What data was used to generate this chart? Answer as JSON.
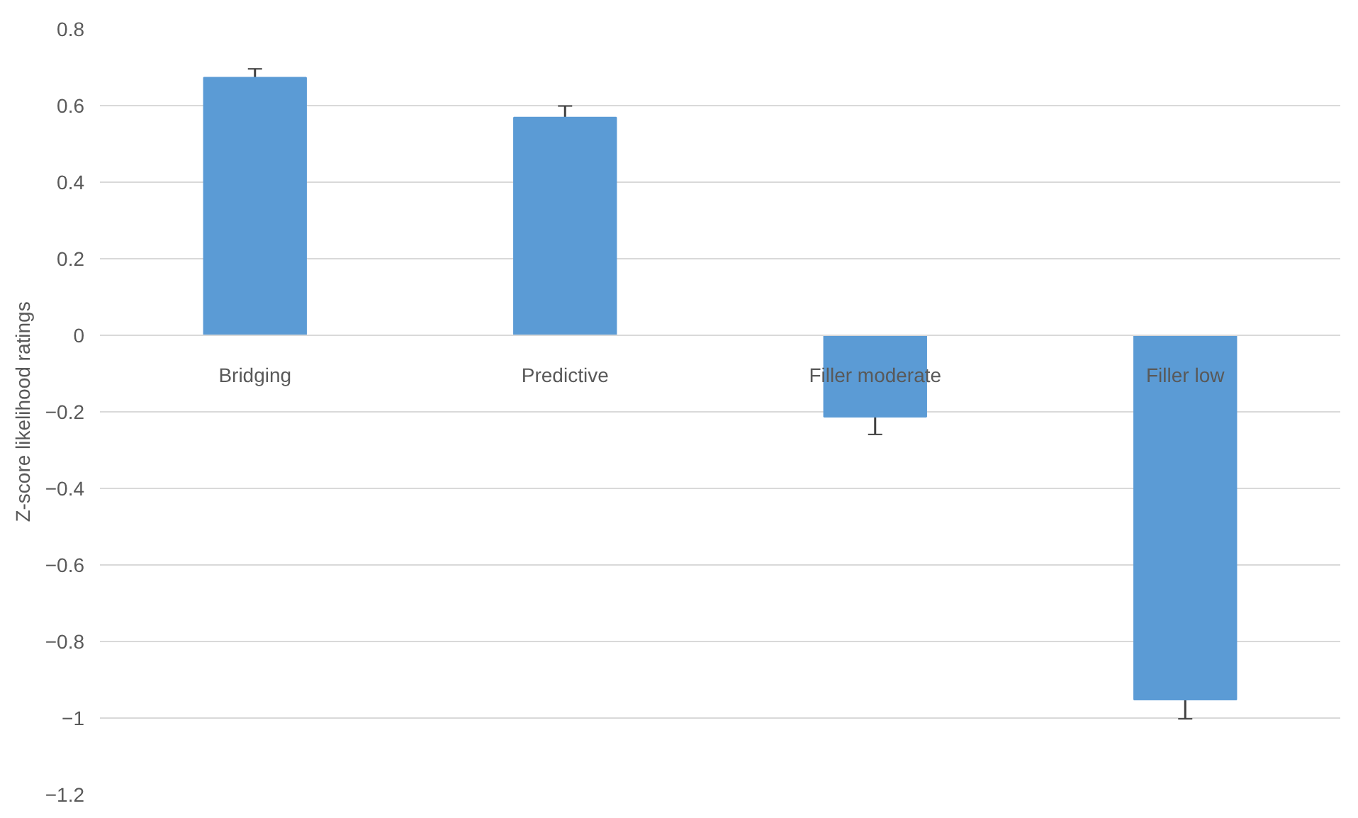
{
  "chart_data": {
    "type": "bar",
    "ylabel": "Z-score likelihood ratings",
    "categories": [
      "Bridging",
      "Predictive",
      "Filler moderate",
      "Filler low"
    ],
    "values": [
      0.673,
      0.569,
      -0.213,
      -0.952
    ],
    "errors": [
      0.023,
      0.03,
      0.046,
      0.05
    ],
    "color": "#5b9bd5",
    "ylim": [
      -1.2,
      0.8
    ],
    "yticks": [
      -1.2,
      -1,
      -0.8,
      -0.6,
      -0.4,
      -0.2,
      0,
      0.2,
      0.4,
      0.6,
      0.8
    ],
    "grid": "y"
  }
}
